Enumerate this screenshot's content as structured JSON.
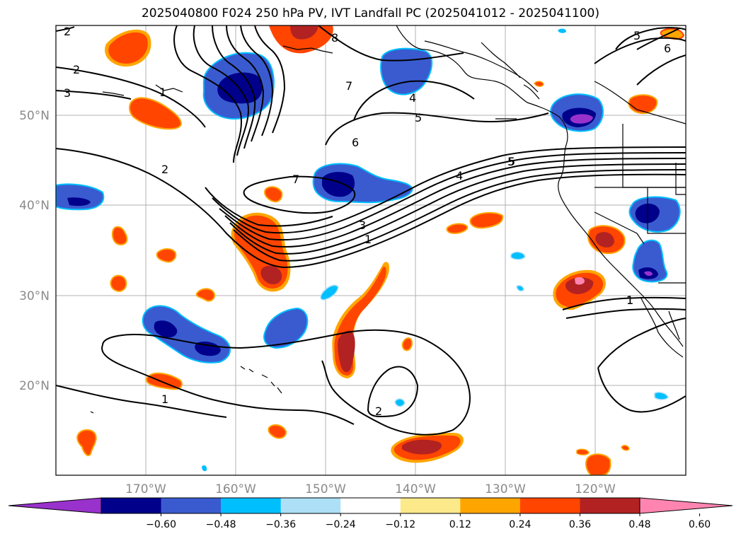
{
  "title": "2025040800 F024 250 hPa PV, IVT Landfall PC (2025041012 - 2025041100)",
  "map": {
    "lat_labels": [
      "50°N",
      "40°N",
      "30°N",
      "20°N"
    ],
    "lon_labels": [
      "170°W",
      "160°W",
      "150°W",
      "140°W",
      "130°W",
      "120°W"
    ],
    "contour_labels": [
      "2",
      "2",
      "3",
      "1",
      "2",
      "1",
      "1",
      "3",
      "7",
      "6",
      "5",
      "4",
      "4",
      "5",
      "6",
      "5",
      "1",
      "2",
      "1",
      "8",
      "7",
      "5"
    ]
  },
  "colorbar": {
    "ticks": [
      "−0.60",
      "−0.48",
      "−0.36",
      "−0.24",
      "−0.12",
      "0.12",
      "0.24",
      "0.36",
      "0.48",
      "0.60"
    ],
    "colors": [
      "#9932CC",
      "#00008B",
      "#3A5BD0",
      "#00BFFF",
      "#ADE0F7",
      "#FFFFFF",
      "#FCE98A",
      "#FFA500",
      "#FF4500",
      "#B22222",
      "#FF85B0"
    ]
  }
}
